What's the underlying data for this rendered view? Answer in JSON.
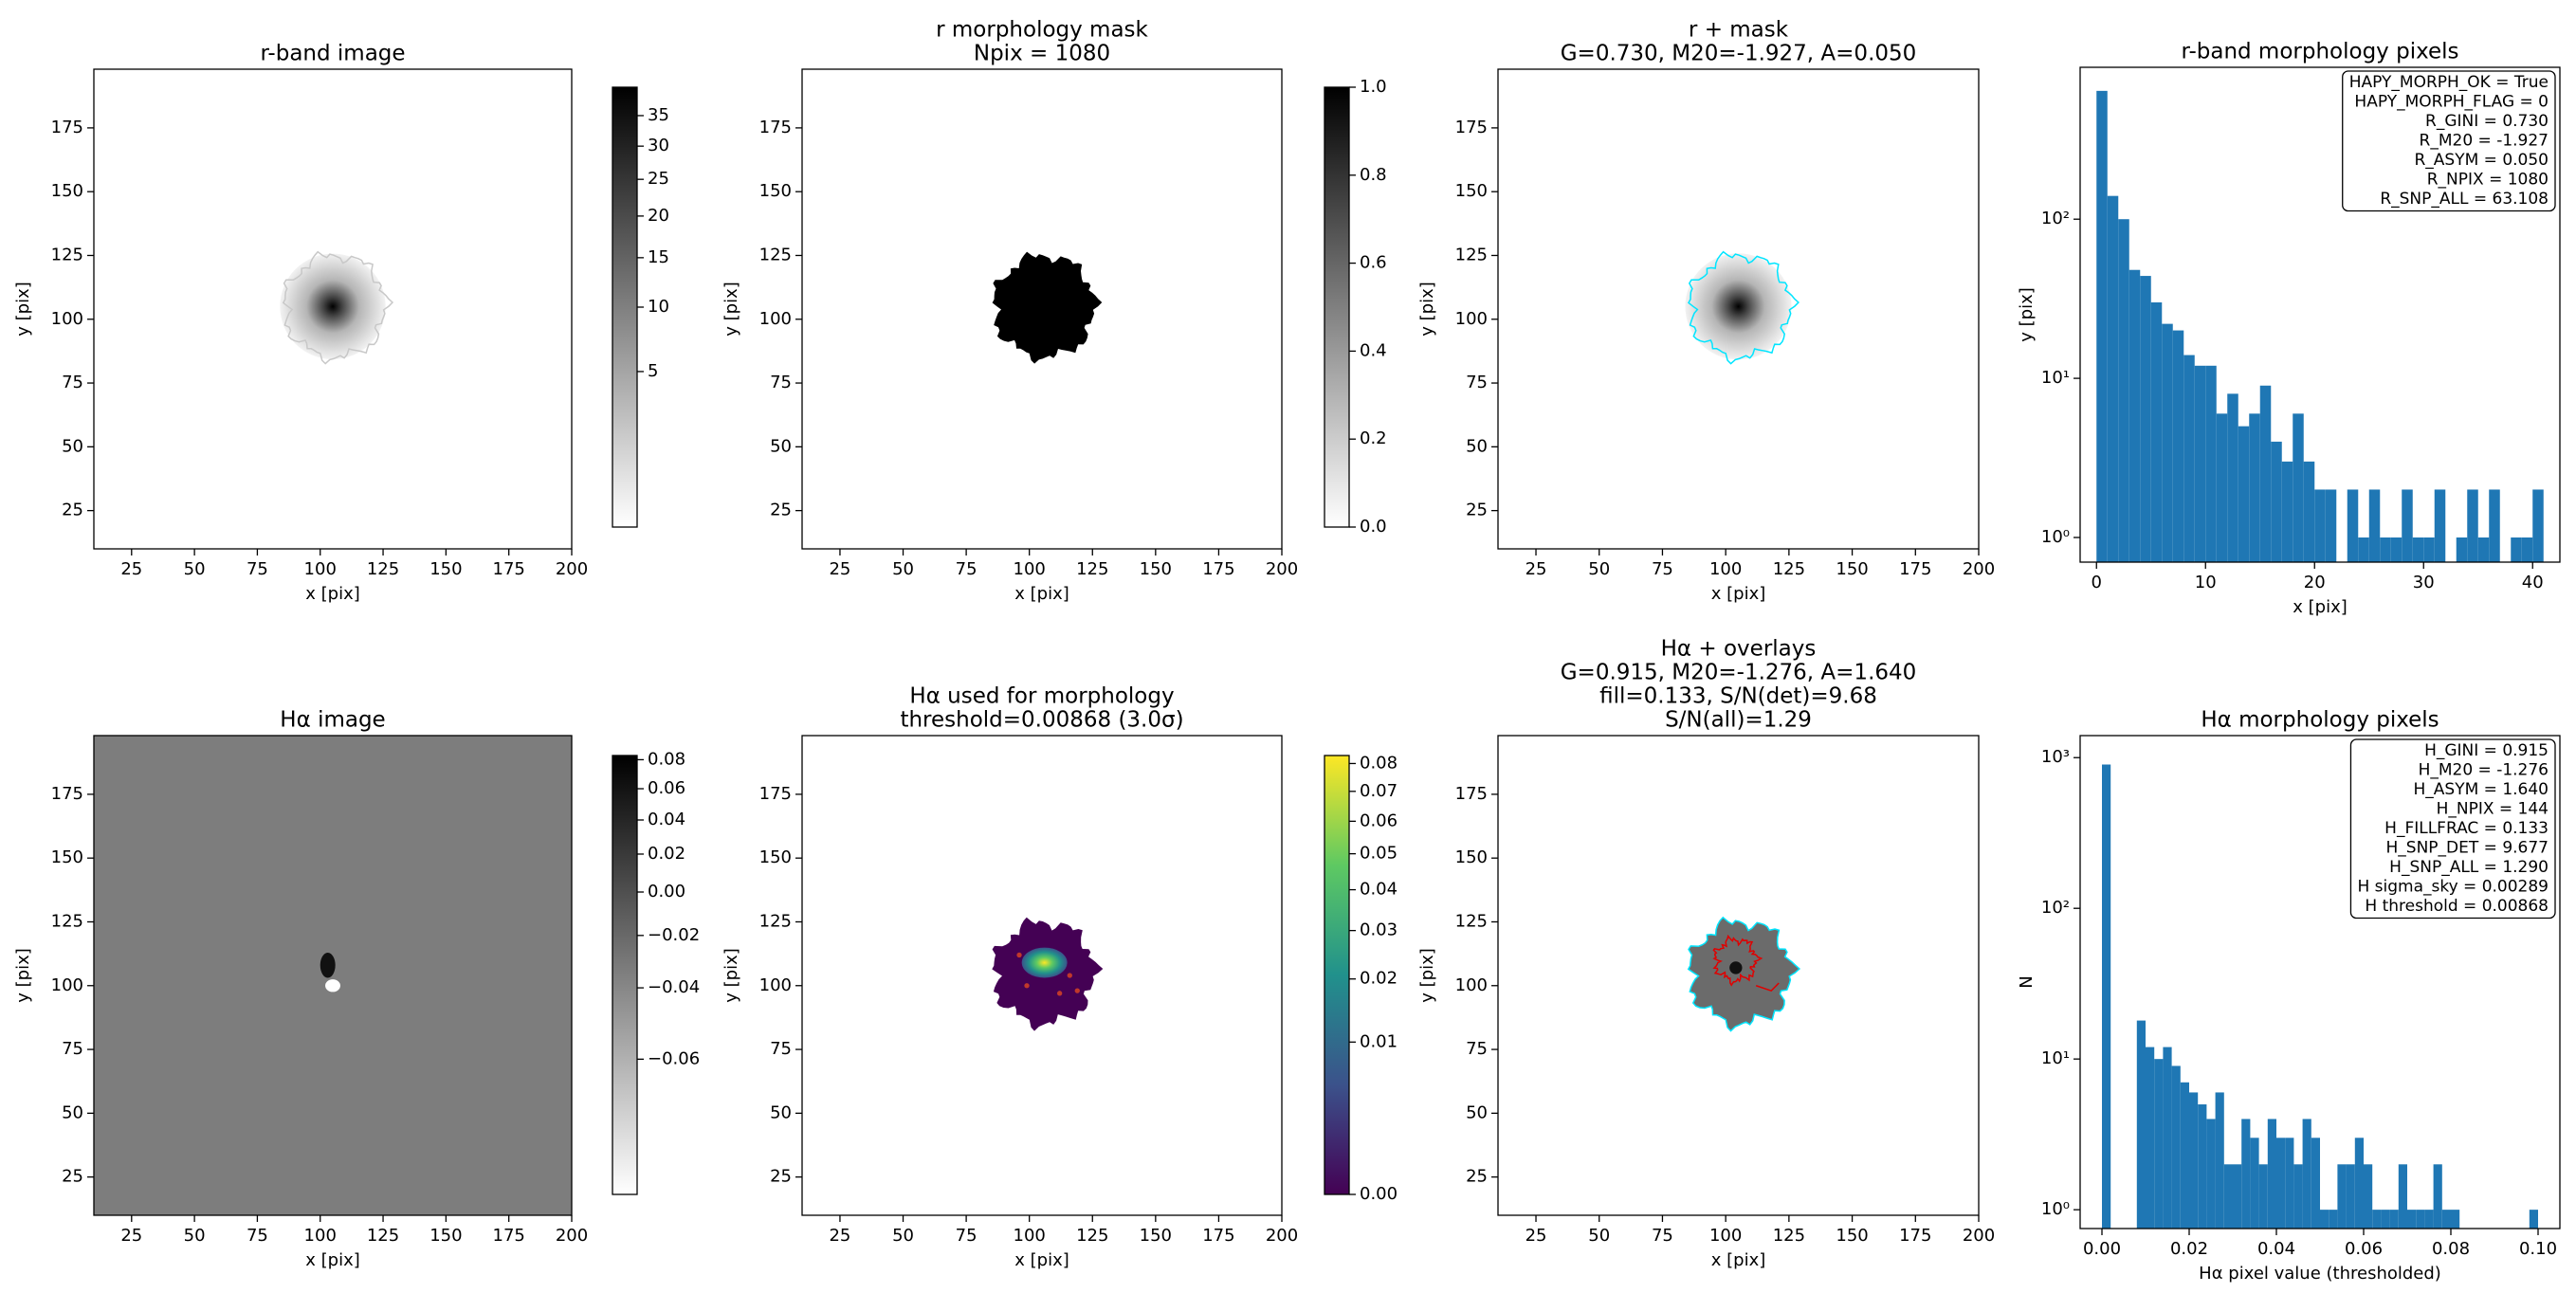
{
  "chart_data": [
    {
      "type": "image",
      "title": [
        "r-band image"
      ],
      "xlabel": "x [pix]",
      "ylabel": "y [pix]",
      "xlim": [
        10,
        200
      ],
      "ylim": [
        10,
        198
      ],
      "xticks": [
        25,
        50,
        75,
        100,
        125,
        150,
        175,
        200
      ],
      "yticks": [
        25,
        50,
        75,
        100,
        125,
        150,
        175
      ],
      "colorbar": {
        "cmap": "gray_r",
        "scale": "sqrt",
        "lim": [
          0,
          40
        ],
        "ticks": [
          5,
          10,
          15,
          20,
          25,
          30,
          35
        ]
      }
    },
    {
      "type": "image",
      "title": [
        "r morphology mask",
        "Npix = 1080"
      ],
      "xlabel": "x [pix]",
      "ylabel": "y [pix]",
      "xlim": [
        10,
        200
      ],
      "ylim": [
        10,
        198
      ],
      "xticks": [
        25,
        50,
        75,
        100,
        125,
        150,
        175,
        200
      ],
      "yticks": [
        25,
        50,
        75,
        100,
        125,
        150,
        175
      ],
      "colorbar": {
        "cmap": "gray_r",
        "scale": "linear",
        "lim": [
          0,
          1
        ],
        "ticks": [
          {
            "value": 0,
            "label": "0.0"
          },
          0.2,
          0.4,
          0.6,
          0.8,
          {
            "value": 1,
            "label": "1.0"
          }
        ]
      }
    },
    {
      "type": "image",
      "title": [
        "r + mask",
        "G=0.730, M20=-1.927, A=0.050"
      ],
      "xlabel": "x [pix]",
      "ylabel": "y [pix]",
      "xlim": [
        10,
        200
      ],
      "ylim": [
        10,
        198
      ],
      "xticks": [
        25,
        50,
        75,
        100,
        125,
        150,
        175,
        200
      ],
      "yticks": [
        25,
        50,
        75,
        100,
        125,
        150,
        175
      ]
    },
    {
      "type": "histogram",
      "title": [
        "r-band morphology pixels"
      ],
      "xlabel": "x [pix]",
      "ylabel": "y [pix]",
      "color": "#1f77b4",
      "log_y": true,
      "xlim": [
        -1.5,
        42.5
      ],
      "xticks": [
        0,
        10,
        20,
        30,
        40
      ],
      "ylim": [
        0.7,
        900
      ],
      "yticks": [
        {
          "value": 1,
          "label": "10⁰"
        },
        {
          "value": 10,
          "label": "10¹"
        },
        {
          "value": 100,
          "label": "10²"
        }
      ],
      "bins": [
        0,
        1,
        2,
        3,
        4,
        5,
        6,
        7,
        8,
        9,
        10,
        11,
        12,
        13,
        14,
        15,
        16,
        17,
        18,
        19,
        20,
        21,
        22,
        23,
        24,
        25,
        26,
        27,
        28,
        29,
        30,
        31,
        32,
        33,
        34,
        35,
        36,
        37,
        38,
        39,
        40,
        41
      ],
      "values": [
        640,
        140,
        100,
        48,
        44,
        30,
        22,
        20,
        14,
        12,
        12,
        6,
        8,
        5,
        6,
        9,
        4,
        3,
        6,
        3,
        2,
        2,
        0,
        2,
        1,
        2,
        1,
        1,
        2,
        1,
        1,
        2,
        0,
        1,
        2,
        1,
        2,
        0,
        1,
        1,
        2
      ],
      "annotation": [
        "HAPY_MORPH_OK = True",
        "HAPY_MORPH_FLAG = 0",
        "R_GINI = 0.730",
        "R_M20 = -1.927",
        "R_ASYM = 0.050",
        "R_NPIX = 1080",
        "R_SNP_ALL = 63.108"
      ]
    },
    {
      "type": "image",
      "title": [
        "Hα image"
      ],
      "xlabel": "x [pix]",
      "ylabel": "y [pix]",
      "xlim": [
        10,
        200
      ],
      "ylim": [
        10,
        198
      ],
      "xticks": [
        25,
        50,
        75,
        100,
        125,
        150,
        175,
        200
      ],
      "yticks": [
        25,
        50,
        75,
        100,
        125,
        150,
        175
      ],
      "colorbar": {
        "cmap": "gray_r",
        "scale": "sqrt",
        "lim": [
          -0.075,
          0.083
        ],
        "ticks": [
          {
            "value": -0.06,
            "label": "−0.06"
          },
          {
            "value": -0.04,
            "label": "−0.04"
          },
          {
            "value": -0.02,
            "label": "−0.02"
          },
          {
            "value": 0,
            "label": "0.00"
          },
          0.02,
          0.04,
          0.06,
          0.08
        ]
      }
    },
    {
      "type": "image",
      "title": [
        "Hα used for morphology",
        "threshold=0.00868 (3.0σ)"
      ],
      "xlabel": "x [pix]",
      "ylabel": "y [pix]",
      "xlim": [
        10,
        200
      ],
      "ylim": [
        10,
        198
      ],
      "xticks": [
        25,
        50,
        75,
        100,
        125,
        150,
        175,
        200
      ],
      "yticks": [
        25,
        50,
        75,
        100,
        125,
        150,
        175
      ],
      "colorbar": {
        "cmap": "viridis",
        "scale": "sqrt",
        "lim": [
          0,
          0.083
        ],
        "ticks": [
          {
            "value": 0,
            "label": "0.00"
          },
          0.01,
          0.02,
          0.03,
          0.04,
          0.05,
          0.06,
          0.07,
          0.08
        ]
      }
    },
    {
      "type": "image",
      "title": [
        "Hα + overlays",
        "G=0.915, M20=-1.276, A=1.640",
        "fill=0.133, S/N(det)=9.68",
        "S/N(all)=1.29"
      ],
      "xlabel": "x [pix]",
      "ylabel": "y [pix]",
      "xlim": [
        10,
        200
      ],
      "ylim": [
        10,
        198
      ],
      "xticks": [
        25,
        50,
        75,
        100,
        125,
        150,
        175,
        200
      ],
      "yticks": [
        25,
        50,
        75,
        100,
        125,
        150,
        175
      ]
    },
    {
      "type": "histogram",
      "title": [
        "Hα morphology pixels"
      ],
      "xlabel": "Hα pixel value (thresholded)",
      "ylabel": "N",
      "color": "#1f77b4",
      "log_y": true,
      "xlim": [
        -0.005,
        0.105
      ],
      "xticks": [
        {
          "value": 0,
          "label": "0.00"
        },
        0.02,
        0.04,
        0.06,
        0.08,
        {
          "value": 0.1,
          "label": "0.10"
        }
      ],
      "ylim": [
        0.75,
        1400
      ],
      "yticks": [
        {
          "value": 1,
          "label": "10⁰"
        },
        {
          "value": 10,
          "label": "10¹"
        },
        {
          "value": 100,
          "label": "10²"
        },
        {
          "value": 1000,
          "label": "10³"
        }
      ],
      "bins": [
        0,
        0.002,
        0.004,
        0.006,
        0.008,
        0.01,
        0.012,
        0.014,
        0.016,
        0.018,
        0.02,
        0.022,
        0.024,
        0.026,
        0.028,
        0.03,
        0.032,
        0.034,
        0.036,
        0.038,
        0.04,
        0.042,
        0.044,
        0.046,
        0.048,
        0.05,
        0.052,
        0.054,
        0.056,
        0.058,
        0.06,
        0.062,
        0.064,
        0.066,
        0.068,
        0.07,
        0.072,
        0.074,
        0.076,
        0.078,
        0.08,
        0.082,
        0.084,
        0.086,
        0.088,
        0.09,
        0.092,
        0.094,
        0.096,
        0.098,
        0.1
      ],
      "values": [
        900,
        0,
        0,
        0,
        18,
        12,
        10,
        12,
        9,
        7,
        6,
        5,
        4,
        6,
        2,
        2,
        4,
        3,
        2,
        4,
        3,
        3,
        2,
        4,
        3,
        1,
        1,
        2,
        2,
        3,
        2,
        1,
        1,
        1,
        2,
        1,
        1,
        1,
        2,
        1,
        1,
        0,
        0,
        0,
        0,
        0,
        0,
        0,
        0,
        1
      ],
      "annotation": [
        "H_GINI = 0.915",
        "H_M20 = -1.276",
        "H_ASYM = 1.640",
        "H_NPIX = 144",
        "H_FILLFRAC = 0.133",
        "H_SNP_DET = 9.677",
        "H_SNP_ALL = 1.290",
        "H sigma_sky = 0.00289",
        "H threshold = 0.00868"
      ]
    }
  ]
}
